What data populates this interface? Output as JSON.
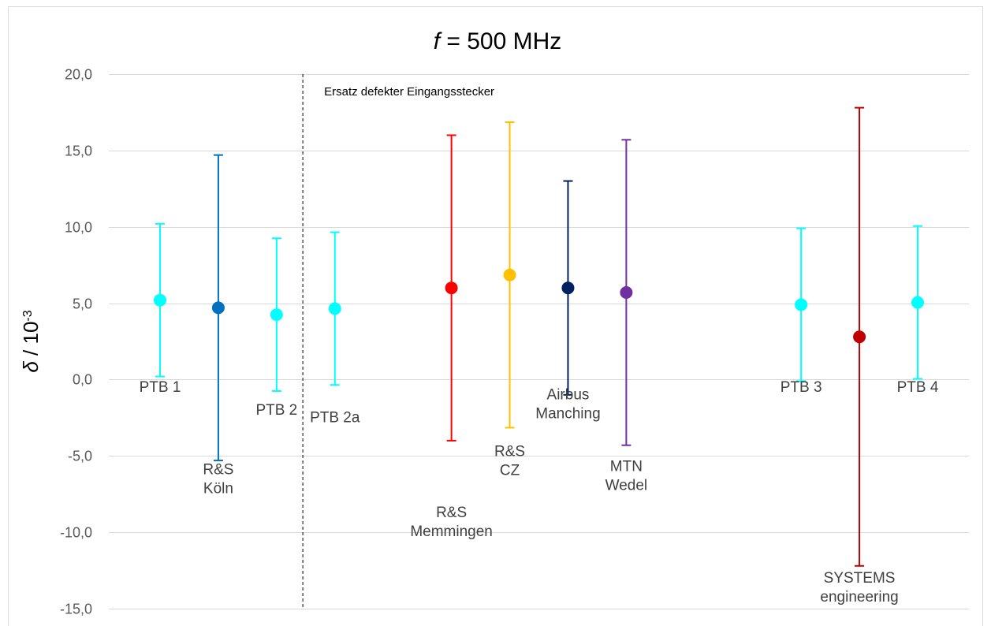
{
  "chart_data": {
    "type": "scatter",
    "title": {
      "italic_symbol": "f",
      "rest": " = 500 MHz"
    },
    "ylabel": {
      "symbol": "δ",
      "sep": " /  10",
      "exp": "-3"
    },
    "ylim": [
      -15,
      20
    ],
    "yticks": [
      -15,
      -10,
      -5,
      0,
      5,
      10,
      15,
      20
    ],
    "ytick_labels": [
      "-15,0",
      "-10,0",
      "-5,0",
      "0,0",
      "5,0",
      "10,0",
      "15,0",
      "20,0"
    ],
    "grid": true,
    "annotation": {
      "text": "Ersatz defekter Eingangsstecker",
      "divider_x": 3.45
    },
    "points": [
      {
        "label_lines": [
          "PTB 1"
        ],
        "x": 1,
        "y": 5.2,
        "lower": 0.2,
        "upper": 10.2,
        "color": "#00ffff",
        "label_y": -0.8
      },
      {
        "label_lines": [
          "R&S",
          "Köln"
        ],
        "x": 2,
        "y": 4.7,
        "lower": -5.3,
        "upper": 14.7,
        "color": "#0070c0",
        "label_y": -6.2
      },
      {
        "label_lines": [
          "PTB 2"
        ],
        "x": 3,
        "y": 4.25,
        "lower": -0.75,
        "upper": 9.25,
        "color": "#00ffff",
        "label_y": -2.3
      },
      {
        "label_lines": [
          "PTB 2a"
        ],
        "x": 4,
        "y": 4.65,
        "lower": -0.35,
        "upper": 9.65,
        "color": "#00ffff",
        "label_y": -2.8
      },
      {
        "label_lines": [
          "R&S",
          "Memmingen"
        ],
        "x": 6,
        "y": 6.0,
        "lower": -4.0,
        "upper": 16.0,
        "color": "#ff0000",
        "label_y": -9.0
      },
      {
        "label_lines": [
          "R&S",
          "CZ"
        ],
        "x": 7,
        "y": 6.85,
        "lower": -3.15,
        "upper": 16.85,
        "color": "#ffc000",
        "label_y": -5.0
      },
      {
        "label_lines": [
          "Airbus",
          "Manching"
        ],
        "x": 8,
        "y": 6.0,
        "lower": -1.0,
        "upper": 13.0,
        "color": "#002060",
        "label_y": -1.3
      },
      {
        "label_lines": [
          "MTN",
          "Wedel"
        ],
        "x": 9,
        "y": 5.7,
        "lower": -4.3,
        "upper": 15.7,
        "color": "#7030a0",
        "label_y": -6.0
      },
      {
        "label_lines": [
          "PTB 3"
        ],
        "x": 12,
        "y": 4.9,
        "lower": -0.1,
        "upper": 9.9,
        "color": "#00ffff",
        "label_y": -0.8
      },
      {
        "label_lines": [
          "SYSTEMS",
          "engineering"
        ],
        "x": 13,
        "y": 2.8,
        "lower": -12.2,
        "upper": 17.8,
        "color": "#c00000",
        "label_y": -13.3
      },
      {
        "label_lines": [
          "PTB 4"
        ],
        "x": 14,
        "y": 5.05,
        "lower": 0.05,
        "upper": 10.05,
        "color": "#00ffff",
        "label_y": -0.8
      }
    ]
  }
}
